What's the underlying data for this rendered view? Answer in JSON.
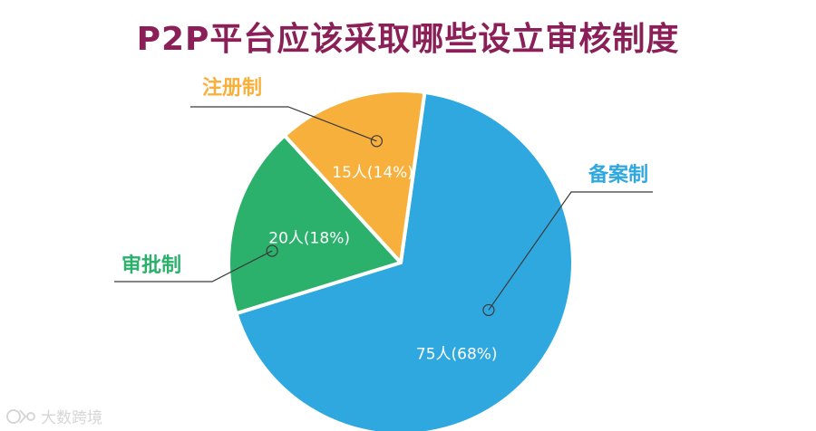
{
  "title": "P2P平台应该采取哪些设立审核制度",
  "colors": {
    "title": "#8b1f57",
    "callout_text": "#3a4a5a",
    "leader_line": "#3a3a3a",
    "slice_border": "#ffffff",
    "slice_label": "#ffffff"
  },
  "watermark": {
    "icon": "logo-icon",
    "text": "大数跨境"
  },
  "chart_data": {
    "type": "pie",
    "title": "P2P平台应该采取哪些设立审核制度",
    "start_angle_deg": 8,
    "direction": "clockwise",
    "slices": [
      {
        "category": "备案制",
        "count": 75,
        "percent": 68,
        "label": "75人(68%)",
        "color": "#2fa8e0",
        "callout_side": "right"
      },
      {
        "category": "审批制",
        "count": 20,
        "percent": 18,
        "label": "20人(18%)",
        "color": "#2bb16c",
        "callout_side": "left"
      },
      {
        "category": "注册制",
        "count": 15,
        "percent": 14,
        "label": "15人(14%)",
        "color": "#f7b03c",
        "callout_side": "top"
      }
    ],
    "legend": "none"
  }
}
